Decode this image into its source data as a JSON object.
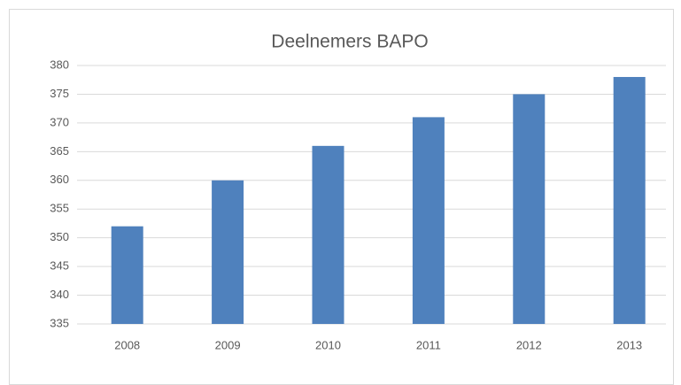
{
  "chart_data": {
    "type": "bar",
    "title": "Deelnemers BAPO",
    "categories": [
      "2008",
      "2009",
      "2010",
      "2011",
      "2012",
      "2013"
    ],
    "values": [
      352,
      360,
      366,
      371,
      375,
      378
    ],
    "color": "#4f81bd",
    "ylim": [
      335,
      380
    ],
    "yticks": [
      335,
      340,
      345,
      350,
      355,
      360,
      365,
      370,
      375,
      380
    ],
    "grid": true
  }
}
